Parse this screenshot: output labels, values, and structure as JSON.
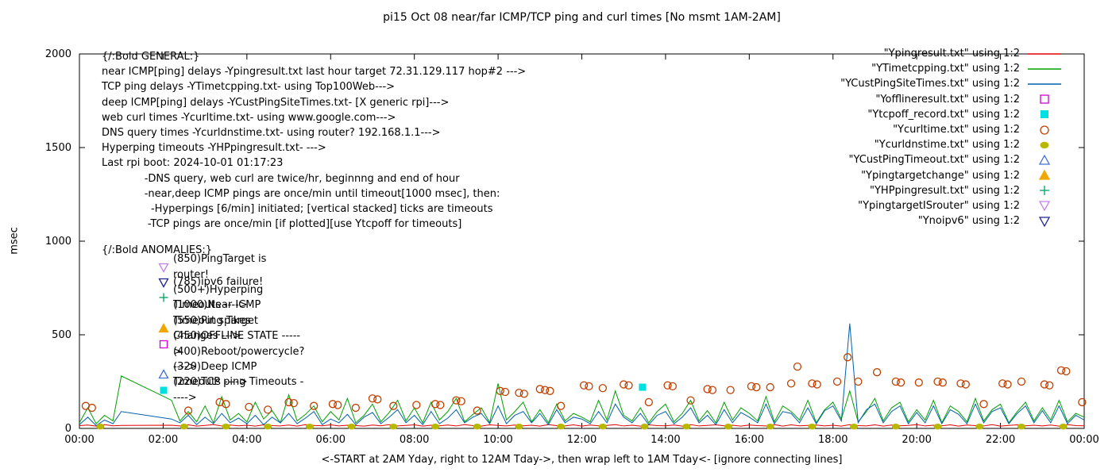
{
  "title": "pi15 Oct 08  near/far ICMP/TCP ping and curl times [No msmt 1AM-2AM]",
  "y_axis": {
    "label": "msec",
    "ticks": [
      0,
      500,
      1000,
      1500,
      2000
    ],
    "max": 2000
  },
  "x_axis": {
    "label": "<-START at 2AM Yday, right to 12AM Tday->, then wrap left to 1AM Tday<- [ignore connecting lines]",
    "tick_hours": [
      0,
      2,
      4,
      6,
      8,
      10,
      12,
      14,
      16,
      18,
      20,
      22,
      24
    ],
    "tick_labels": [
      "00:00",
      "02:00",
      "04:00",
      "06:00",
      "08:00",
      "10:00",
      "12:00",
      "14:00",
      "16:00",
      "18:00",
      "20:00",
      "22:00",
      "00:00"
    ]
  },
  "general_lines": [
    "{/:Bold GENERAL:}",
    "near ICMP[ping] delays -Ypingresult.txt last hour target 72.31.129.117 hop#2 --->",
    "TCP ping delays -YTimetcpping.txt- using Top100Web--->",
    "deep ICMP[ping] delays -YCustPingSiteTimes.txt- [X generic rpi]--->",
    "web curl times -Ycurltime.txt- using www.google.com--->",
    "DNS query times -Ycurldnstime.txt- using router? 192.168.1.1--->",
    "Hyperping timeouts -YHPpingresult.txt- --->",
    "Last rpi boot: 2024-10-01 01:17:23",
    "             -DNS query, web curl are twice/hr, beginnng and end of hour",
    "             -near,deep ICMP pings are once/min until timeout[1000 msec], then:",
    "               -Hyperpings [6/min] initiated; [vertical stacked] ticks are timeouts",
    "              -TCP pings are once/min [if plotted][use Ytcpoff for timeouts]"
  ],
  "anomalies_title": "{/:Bold ANOMALIES:}",
  "anomalies": [
    {
      "marker": "triangle-down-open",
      "color": "#c080f0",
      "label": "(850)PingTarget is router!"
    },
    {
      "marker": "triangle-down-open",
      "color": "#202090",
      "label": "(785)ipv6 failure!"
    },
    {
      "marker": "plus",
      "color": "#00a060",
      "label": "(500+)Hyperping Timeouts ---->"
    },
    {
      "marker": null,
      "color": "#000000",
      "label": "(1000)Near ICMP Timeout spikes"
    },
    {
      "marker": "triangle-up-filled",
      "color": "#f0a800",
      "label": "(550)Ping Target Changes --->"
    },
    {
      "marker": "square-open",
      "color": "#d000d0",
      "label": "(450)OFFLINE STATE ----->"
    },
    {
      "marker": null,
      "color": "#000000",
      "label": "(400)Reboot/powercycle? ---->"
    },
    {
      "marker": "triangle-up-open",
      "color": "#4070d0",
      "label": "(320)Deep ICMP Timeouts ---->"
    },
    {
      "marker": "square-filled",
      "color": "#00e0e0",
      "label": "(220)TCP ping Timeouts ----->"
    }
  ],
  "legend": [
    {
      "label": "\"Ypingresult.txt\" using 1:2",
      "sample": "line",
      "color": "#e00000"
    },
    {
      "label": "\"YTimetcpping.txt\" using 1:2",
      "sample": "line",
      "color": "#00a000"
    },
    {
      "label": "\"YCustPingSiteTimes.txt\" using 1:2",
      "sample": "line",
      "color": "#0060ad"
    },
    {
      "label": "\"Yofflineresult.txt\" using 1:2",
      "sample": "square-open",
      "color": "#d000d0"
    },
    {
      "label": "\"Ytcpoff_record.txt\" using 1:2",
      "sample": "square-filled",
      "color": "#00e0e0"
    },
    {
      "label": "\"Ycurltime.txt\" using 1:2",
      "sample": "circle-open",
      "color": "#c04000"
    },
    {
      "label": "\"Ycurldnstime.txt\" using 1:2",
      "sample": "circle-filled",
      "color": "#b8b800"
    },
    {
      "label": "\"YCustPingTimeout.txt\" using 1:2",
      "sample": "triangle-up-open",
      "color": "#4070d0"
    },
    {
      "label": "\"Ypingtargetchange\" using 1:2",
      "sample": "triangle-up-filled",
      "color": "#f0a800"
    },
    {
      "label": "\"YHPpingresult.txt\" using 1:2",
      "sample": "plus",
      "color": "#00a060"
    },
    {
      "label": "\"YpingtargetISrouter\" using 1:2",
      "sample": "triangle-down-open",
      "color": "#c080f0"
    },
    {
      "label": "\"Ynoipv6\" using 1:2",
      "sample": "triangle-down-open",
      "color": "#202090"
    }
  ],
  "chart_data": {
    "type": "line",
    "title": "pi15 Oct 08  near/far ICMP/TCP ping and curl times [No msmt 1AM-2AM]",
    "xlabel": "<-START at 2AM Yday, right to 12AM Tday->, then wrap left to 1AM Tday<- [ignore connecting lines]",
    "ylabel": "msec",
    "xlim": [
      0,
      24
    ],
    "ylim": [
      0,
      2000
    ],
    "grid": false,
    "legend_position": "top-right",
    "series": [
      {
        "name": "Ypingresult.txt",
        "type": "line",
        "color": "#e00000",
        "x_start": 0,
        "x_step": 0.2,
        "y": [
          15,
          18,
          12,
          20,
          14,
          16,
          null,
          null,
          null,
          null,
          null,
          17,
          13,
          19,
          12,
          16,
          20,
          13,
          18,
          14,
          17,
          12,
          19,
          15,
          13,
          18,
          12,
          20,
          16,
          14,
          19,
          13,
          17,
          15,
          12,
          18,
          14,
          20,
          13,
          16,
          19,
          12,
          17,
          14,
          18,
          13,
          20,
          15,
          12,
          19,
          16,
          13,
          18,
          14,
          17,
          12,
          20,
          15,
          13,
          19,
          12,
          18,
          14,
          16,
          20,
          13,
          17,
          12,
          19,
          15,
          14,
          18,
          12,
          20,
          13,
          16,
          19,
          14,
          17,
          12,
          18,
          15,
          13,
          20,
          12,
          19,
          14,
          16,
          18,
          13,
          17,
          12,
          20,
          15,
          13,
          19,
          12,
          18,
          14,
          16,
          20,
          13,
          17,
          14,
          19,
          12,
          18,
          15,
          13,
          20,
          12,
          16,
          19,
          14,
          17,
          13,
          18,
          12,
          20,
          15,
          14
        ]
      },
      {
        "name": "YTimetcpping.txt",
        "type": "line",
        "color": "#00a000",
        "x_start": 0,
        "x_step": 0.2,
        "y": [
          30,
          110,
          25,
          70,
          40,
          280,
          null,
          null,
          null,
          null,
          null,
          150,
          40,
          90,
          35,
          120,
          30,
          170,
          45,
          80,
          35,
          140,
          50,
          95,
          30,
          180,
          40,
          75,
          120,
          35,
          90,
          45,
          160,
          30,
          70,
          130,
          35,
          85,
          150,
          40,
          110,
          30,
          140,
          45,
          90,
          160,
          35,
          75,
          110,
          30,
          240,
          45,
          90,
          140,
          35,
          100,
          30,
          130,
          40,
          80,
          60,
          35,
          150,
          45,
          200,
          70,
          40,
          110,
          30,
          90,
          130,
          35,
          80,
          150,
          40,
          95,
          30,
          140,
          45,
          110,
          80,
          40,
          170,
          35,
          120,
          90,
          45,
          150,
          30,
          100,
          140,
          50,
          200,
          35,
          90,
          160,
          40,
          110,
          140,
          35,
          100,
          45,
          150,
          30,
          120,
          90,
          35,
          160,
          40,
          100,
          130,
          30,
          90,
          140,
          40,
          110,
          45,
          150,
          35,
          80,
          60
        ]
      },
      {
        "name": "YCustPingSiteTimes.txt",
        "type": "line",
        "color": "#0060ad",
        "x_start": 0,
        "x_step": 0.2,
        "y": [
          20,
          60,
          15,
          45,
          25,
          90,
          null,
          null,
          null,
          null,
          null,
          50,
          30,
          70,
          20,
          60,
          25,
          80,
          30,
          55,
          25,
          70,
          20,
          60,
          30,
          80,
          25,
          55,
          90,
          20,
          50,
          30,
          75,
          20,
          60,
          85,
          25,
          60,
          100,
          30,
          70,
          20,
          90,
          25,
          55,
          100,
          30,
          60,
          80,
          25,
          120,
          25,
          70,
          90,
          30,
          80,
          20,
          100,
          30,
          60,
          50,
          25,
          90,
          30,
          130,
          60,
          30,
          80,
          20,
          70,
          90,
          25,
          60,
          110,
          30,
          70,
          20,
          100,
          30,
          85,
          60,
          30,
          130,
          25,
          90,
          80,
          30,
          110,
          25,
          95,
          120,
          40,
          560,
          30,
          100,
          130,
          30,
          90,
          120,
          25,
          85,
          30,
          120,
          25,
          100,
          75,
          25,
          130,
          30,
          90,
          110,
          25,
          80,
          120,
          30,
          95,
          30,
          120,
          25,
          70,
          45
        ]
      },
      {
        "name": "Ycurltime.txt",
        "type": "scatter",
        "marker": "circle-open",
        "color": "#c04000",
        "points": [
          [
            0.15,
            120
          ],
          [
            0.3,
            110
          ],
          [
            2.6,
            95
          ],
          [
            3.35,
            140
          ],
          [
            3.5,
            130
          ],
          [
            4.05,
            115
          ],
          [
            4.5,
            100
          ],
          [
            5.0,
            140
          ],
          [
            5.12,
            135
          ],
          [
            5.6,
            120
          ],
          [
            6.05,
            130
          ],
          [
            6.17,
            125
          ],
          [
            6.6,
            110
          ],
          [
            7.0,
            160
          ],
          [
            7.12,
            155
          ],
          [
            7.5,
            120
          ],
          [
            8.05,
            125
          ],
          [
            8.5,
            130
          ],
          [
            8.62,
            125
          ],
          [
            9.0,
            150
          ],
          [
            9.12,
            145
          ],
          [
            9.5,
            95
          ],
          [
            10.05,
            200
          ],
          [
            10.17,
            195
          ],
          [
            10.5,
            190
          ],
          [
            10.62,
            185
          ],
          [
            11.0,
            210
          ],
          [
            11.12,
            205
          ],
          [
            11.24,
            200
          ],
          [
            11.5,
            120
          ],
          [
            12.05,
            230
          ],
          [
            12.17,
            225
          ],
          [
            12.5,
            215
          ],
          [
            13.0,
            235
          ],
          [
            13.12,
            230
          ],
          [
            13.6,
            140
          ],
          [
            14.05,
            230
          ],
          [
            14.17,
            225
          ],
          [
            14.6,
            150
          ],
          [
            15.0,
            210
          ],
          [
            15.12,
            205
          ],
          [
            15.55,
            205
          ],
          [
            16.05,
            225
          ],
          [
            16.17,
            220
          ],
          [
            16.5,
            220
          ],
          [
            17.0,
            240
          ],
          [
            17.15,
            330
          ],
          [
            17.5,
            240
          ],
          [
            17.62,
            235
          ],
          [
            18.1,
            250
          ],
          [
            18.35,
            380
          ],
          [
            18.6,
            250
          ],
          [
            19.05,
            300
          ],
          [
            19.5,
            250
          ],
          [
            19.62,
            245
          ],
          [
            20.05,
            245
          ],
          [
            20.5,
            250
          ],
          [
            20.62,
            245
          ],
          [
            21.05,
            240
          ],
          [
            21.17,
            235
          ],
          [
            21.6,
            130
          ],
          [
            22.05,
            240
          ],
          [
            22.17,
            235
          ],
          [
            22.5,
            250
          ],
          [
            23.05,
            235
          ],
          [
            23.17,
            230
          ],
          [
            23.45,
            310
          ],
          [
            23.57,
            305
          ],
          [
            23.95,
            140
          ]
        ]
      },
      {
        "name": "Ycurldnstime.txt",
        "type": "scatter",
        "marker": "circle-filled",
        "color": "#b8b800",
        "points": [
          [
            0.5,
            10
          ],
          [
            2.5,
            10
          ],
          [
            3.5,
            10
          ],
          [
            4.5,
            10
          ],
          [
            5.5,
            10
          ],
          [
            6.5,
            10
          ],
          [
            7.5,
            10
          ],
          [
            8.5,
            10
          ],
          [
            9.5,
            10
          ],
          [
            10.5,
            10
          ],
          [
            11.5,
            10
          ],
          [
            12.5,
            10
          ],
          [
            13.5,
            10
          ],
          [
            14.5,
            10
          ],
          [
            15.5,
            10
          ],
          [
            16.5,
            10
          ],
          [
            17.5,
            10
          ],
          [
            18.5,
            10
          ],
          [
            19.5,
            10
          ],
          [
            20.5,
            10
          ],
          [
            21.5,
            10
          ],
          [
            22.5,
            10
          ],
          [
            23.5,
            10
          ]
        ]
      },
      {
        "name": "Ytcpoff_record.txt",
        "type": "scatter",
        "marker": "square-filled",
        "color": "#00e0e0",
        "points": [
          [
            13.45,
            220
          ]
        ]
      }
    ]
  }
}
